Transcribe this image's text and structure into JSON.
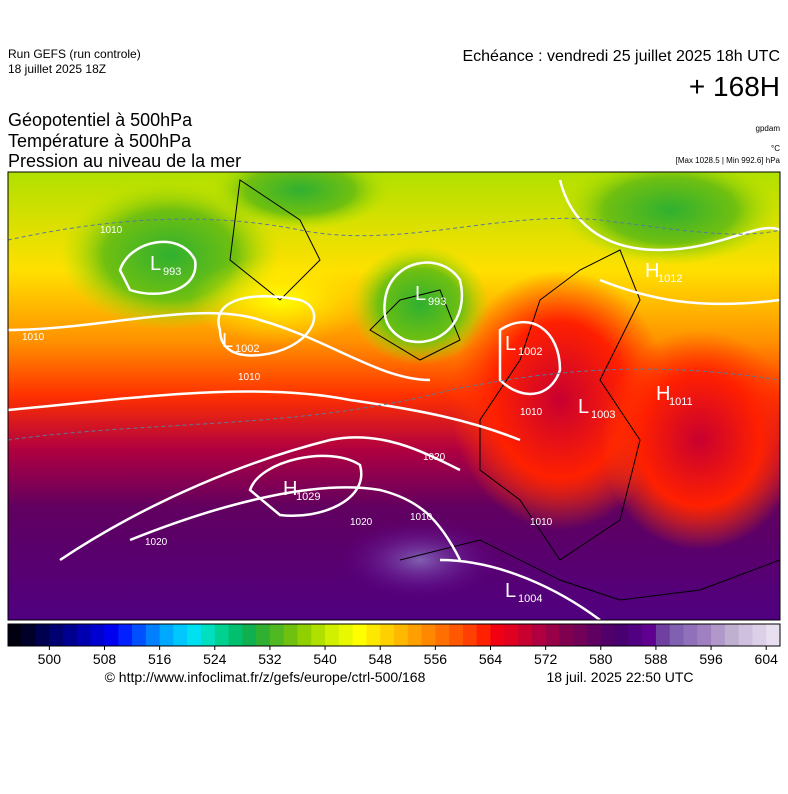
{
  "header": {
    "run": "Run GEFS (run controle)",
    "run_date": "18 juillet 2025 18Z",
    "valid": "Echéance : vendredi 25 juillet 2025 18h UTC",
    "lead": "+ 168H",
    "fields": [
      "Géopotentiel à 500hPa",
      "Température à 500hPa",
      "Pression au niveau de la mer"
    ],
    "units": [
      "gpdam",
      "°C",
      "[Max 1028.5 | Min 992.6] hPa"
    ]
  },
  "centers": [
    {
      "letter": "L",
      "value": 993
    },
    {
      "letter": "L",
      "value": 993
    },
    {
      "letter": "L",
      "value": 1002
    },
    {
      "letter": "L",
      "value": 1002
    },
    {
      "letter": "L",
      "value": 1003
    },
    {
      "letter": "H",
      "value": 1012
    },
    {
      "letter": "H",
      "value": 1011
    },
    {
      "letter": "H",
      "value": 1029
    },
    {
      "letter": "L",
      "value": 1004
    }
  ],
  "isobar_labels": [
    1010,
    1010,
    1010,
    1020,
    1020,
    1020,
    1010,
    1010,
    1010
  ],
  "colorbar": {
    "lim": [
      494,
      606
    ],
    "ticks": [
      500,
      508,
      516,
      524,
      532,
      540,
      548,
      556,
      564,
      572,
      580,
      588,
      596,
      604
    ],
    "colors": [
      "#000010",
      "#00002a",
      "#000050",
      "#000070",
      "#000090",
      "#0000b0",
      "#0000d0",
      "#0000f0",
      "#0020ff",
      "#0050ff",
      "#0080ff",
      "#00a8ff",
      "#00c8ff",
      "#00e0f0",
      "#00e0c0",
      "#00d090",
      "#00c070",
      "#10b050",
      "#30b030",
      "#50b820",
      "#70c010",
      "#90d000",
      "#b0e000",
      "#d0f000",
      "#e8f800",
      "#ffff00",
      "#ffe800",
      "#ffd000",
      "#ffb800",
      "#ffa000",
      "#ff8800",
      "#ff7000",
      "#ff5800",
      "#ff4000",
      "#ff2000",
      "#f00010",
      "#e00020",
      "#c80030",
      "#b00040",
      "#980048",
      "#800050",
      "#700058",
      "#600060",
      "#500068",
      "#480070",
      "#500080",
      "#600090",
      "#7040a0",
      "#8060b0",
      "#9070b8",
      "#a080c0",
      "#b098c8",
      "#c0b0d0",
      "#d0c0e0",
      "#dcd0e8",
      "#e8e0f0"
    ]
  },
  "footer": {
    "source": "© http://www.infoclimat.fr/z/gefs/europe/ctrl-500/168",
    "generated": "18 juil. 2025 22:50 UTC"
  }
}
